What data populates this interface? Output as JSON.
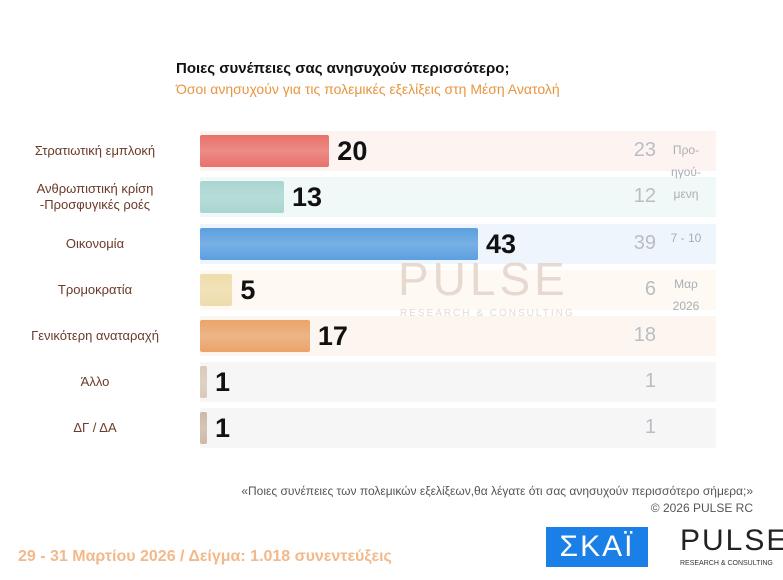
{
  "chart_data": {
    "type": "bar",
    "title": "Ποιες συνέπειες σας ανησυχούν περισσότερο;",
    "subtitle": "Όσοι ανησυχούν για τις πολεμικές εξελίξεις στη Μέση Ανατολή",
    "categories": [
      "Στρατιωτική εμπλοκή",
      "Ανθρωπιστική κρίση -Προσφυγικές ροές",
      "Οικονομία",
      "Τρομοκρατία",
      "Γενικότερη αναταραχή",
      "Άλλο",
      "ΔΓ / ΔΑ"
    ],
    "series": [
      {
        "name": "current",
        "values": [
          20,
          13,
          43,
          5,
          17,
          1,
          1
        ]
      },
      {
        "name": "Προηγούμενη 7-10 Μαρ 2026",
        "values": [
          23,
          12,
          39,
          6,
          18,
          1,
          1
        ]
      }
    ],
    "colors": [
      "#e8716a",
      "#a9d5d1",
      "#5b9fe0",
      "#eedcaa",
      "#eaa46a",
      "#d9c9b9",
      "#cdb9a6"
    ],
    "bands": [
      "#fdf3f1",
      "#f1f8f8",
      "#eef5fc",
      "#fefaf3",
      "#fdf6f0",
      "#f6f6f6",
      "#f6f6f6"
    ],
    "prev_note": [
      "Προ-",
      "ηγού-",
      "μενη",
      "7 - 10",
      "Μαρ",
      "2026"
    ],
    "xlim": [
      0,
      43
    ]
  },
  "watermark": "PULSE",
  "watermark_sub": "RESEARCH & CONSULTING",
  "question": "«Ποιες συνέπειες των πολεμικών εξελίξεων,θα λέγατε ότι σας ανησυχούν περισσότερο σήμερα;»",
  "copyright": "©  2026  PULSE RC",
  "footer": "29 - 31  Μαρτίου 2026  /  Δείγμα:  1.018 συνεντεύξεις",
  "logo_skai": "ΣΚΑΪ",
  "logo_pulse": "PULSE",
  "logo_pulse_sub": "RESEARCH & CONSULTING"
}
